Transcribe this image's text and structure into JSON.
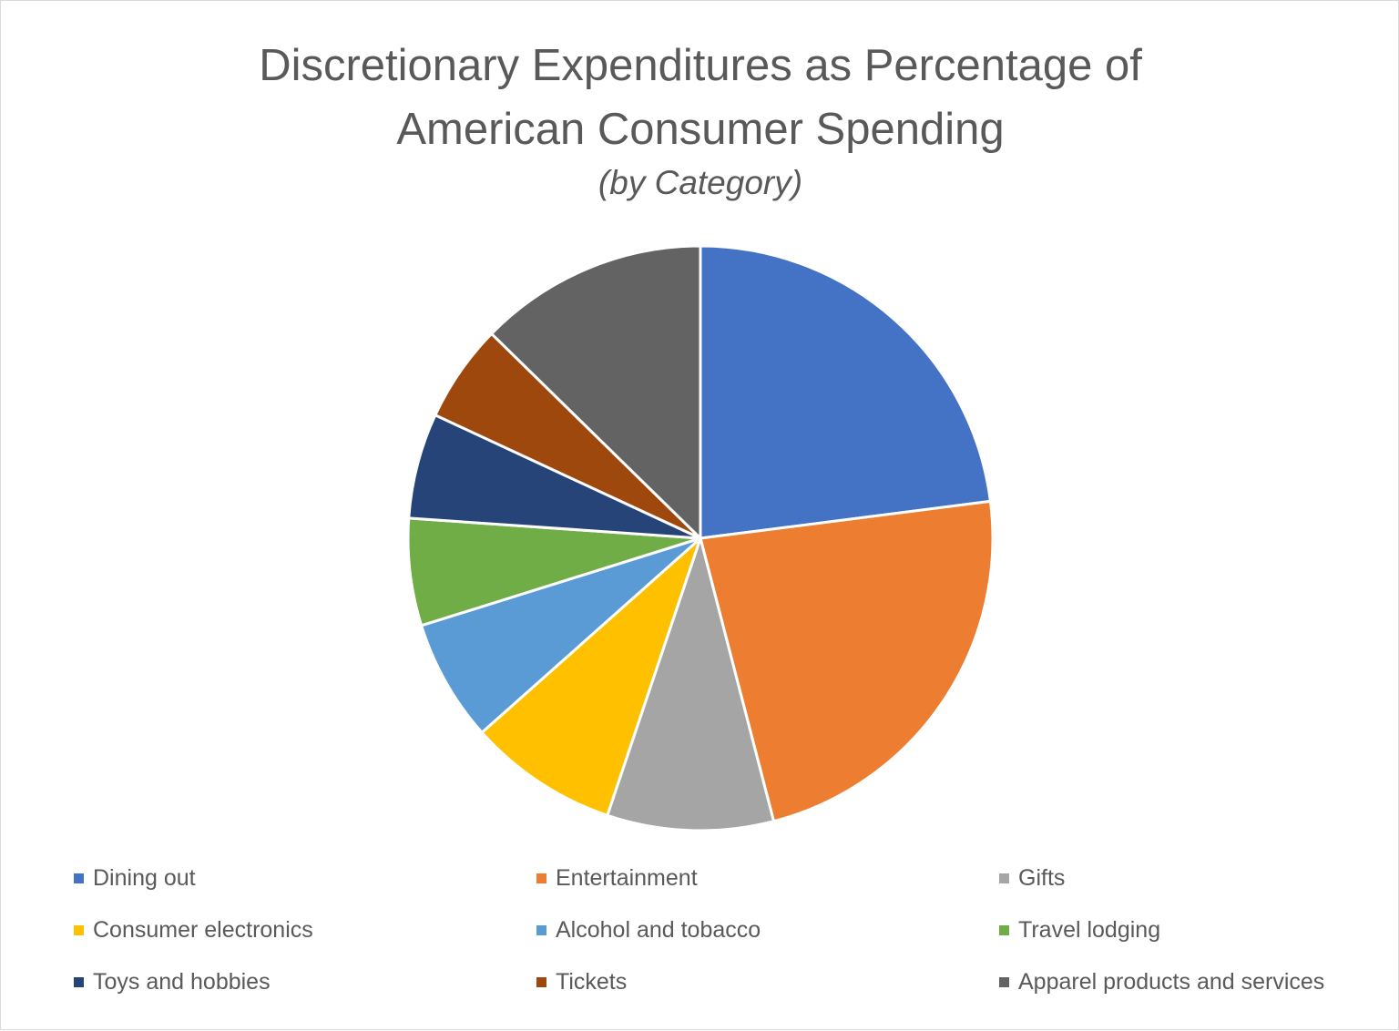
{
  "chart_data": {
    "type": "pie",
    "title": "Discretionary Expenditures as Percentage of American Consumer Spending",
    "subtitle": "(by Category)",
    "legend_position": "bottom",
    "slices": [
      {
        "label": "Dining out",
        "value": 22.5,
        "color": "#4472C4"
      },
      {
        "label": "Entertainment",
        "value": 22.5,
        "color": "#ED7D31"
      },
      {
        "label": "Gifts",
        "value": 9.0,
        "color": "#A5A5A5"
      },
      {
        "label": "Consumer electronics",
        "value": 8.1,
        "color": "#FFC000"
      },
      {
        "label": "Alcohol and tobacco",
        "value": 6.6,
        "color": "#5B9BD5"
      },
      {
        "label": "Travel lodging",
        "value": 5.8,
        "color": "#70AD47"
      },
      {
        "label": "Toys and hobbies",
        "value": 5.7,
        "color": "#264478"
      },
      {
        "label": "Tickets",
        "value": 5.3,
        "color": "#9E480E"
      },
      {
        "label": "Apparel products and services",
        "value": 12.4,
        "color": "#636363"
      }
    ]
  }
}
